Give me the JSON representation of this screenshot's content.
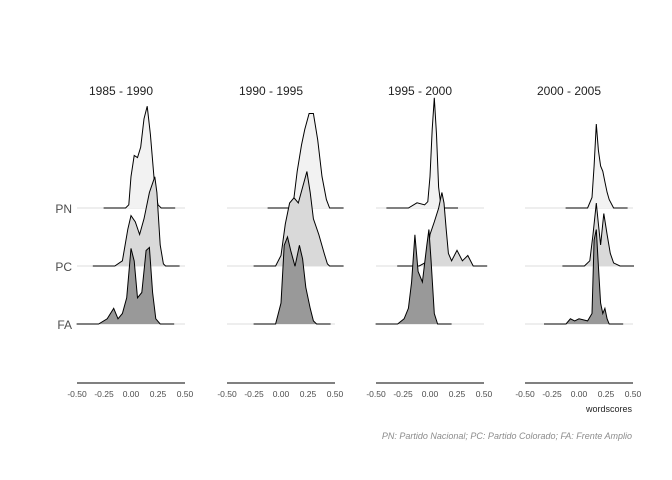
{
  "chart_data": {
    "type": "ridgeline",
    "x_label": "wordscores",
    "caption": "PN: Partido Nacional; PC: Partido Colorado; FA: Frente Amplio",
    "groups": [
      "PN",
      "PC",
      "FA"
    ],
    "x_ticks": [
      "-0.50",
      "-0.25",
      "0.00",
      "0.25",
      "0.50"
    ],
    "xlim": [
      -0.5,
      0.5
    ],
    "fills": {
      "PN": "#f2f2f2",
      "PC": "#d9d9d9",
      "FA": "#999999"
    },
    "panels": [
      {
        "title": "1985 - 1990",
        "curves": {
          "PN": [
            [
              -0.05,
              0
            ],
            [
              -0.02,
              0.03
            ],
            [
              0.0,
              0.3
            ],
            [
              0.03,
              0.5
            ],
            [
              0.06,
              0.48
            ],
            [
              0.09,
              0.58
            ],
            [
              0.12,
              0.85
            ],
            [
              0.15,
              0.97
            ],
            [
              0.18,
              0.7
            ],
            [
              0.22,
              0.2
            ],
            [
              0.25,
              0.03
            ],
            [
              0.28,
              0
            ]
          ],
          "PC": [
            [
              -0.15,
              0
            ],
            [
              -0.08,
              0.05
            ],
            [
              -0.03,
              0.35
            ],
            [
              0.0,
              0.48
            ],
            [
              0.04,
              0.42
            ],
            [
              0.08,
              0.3
            ],
            [
              0.12,
              0.45
            ],
            [
              0.17,
              0.7
            ],
            [
              0.22,
              0.85
            ],
            [
              0.24,
              0.7
            ],
            [
              0.27,
              0.2
            ],
            [
              0.3,
              0.02
            ],
            [
              0.32,
              0
            ]
          ],
          "FA": [
            [
              -0.3,
              0
            ],
            [
              -0.22,
              0.05
            ],
            [
              -0.16,
              0.15
            ],
            [
              -0.12,
              0.05
            ],
            [
              -0.08,
              0.1
            ],
            [
              -0.04,
              0.25
            ],
            [
              0.0,
              0.72
            ],
            [
              0.03,
              0.6
            ],
            [
              0.06,
              0.25
            ],
            [
              0.1,
              0.3
            ],
            [
              0.14,
              0.7
            ],
            [
              0.17,
              0.73
            ],
            [
              0.2,
              0.3
            ],
            [
              0.23,
              0.05
            ],
            [
              0.27,
              0
            ]
          ]
        }
      },
      {
        "title": "1990 - 1995",
        "curves": {
          "PN": [
            [
              0.08,
              0
            ],
            [
              0.12,
              0.1
            ],
            [
              0.15,
              0.35
            ],
            [
              0.19,
              0.6
            ],
            [
              0.22,
              0.75
            ],
            [
              0.26,
              0.9
            ],
            [
              0.3,
              0.9
            ],
            [
              0.34,
              0.65
            ],
            [
              0.38,
              0.3
            ],
            [
              0.42,
              0.08
            ],
            [
              0.45,
              0
            ]
          ],
          "PC": [
            [
              -0.05,
              0
            ],
            [
              0.0,
              0.1
            ],
            [
              0.04,
              0.4
            ],
            [
              0.08,
              0.6
            ],
            [
              0.12,
              0.65
            ],
            [
              0.16,
              0.6
            ],
            [
              0.2,
              0.75
            ],
            [
              0.24,
              0.9
            ],
            [
              0.27,
              0.7
            ],
            [
              0.3,
              0.45
            ],
            [
              0.35,
              0.3
            ],
            [
              0.4,
              0.12
            ],
            [
              0.43,
              0.02
            ],
            [
              0.45,
              0
            ]
          ],
          "FA": [
            [
              -0.05,
              0
            ],
            [
              0.0,
              0.2
            ],
            [
              0.03,
              0.75
            ],
            [
              0.06,
              0.83
            ],
            [
              0.09,
              0.7
            ],
            [
              0.13,
              0.55
            ],
            [
              0.17,
              0.75
            ],
            [
              0.2,
              0.62
            ],
            [
              0.23,
              0.35
            ],
            [
              0.27,
              0.15
            ],
            [
              0.3,
              0.03
            ],
            [
              0.33,
              0
            ]
          ]
        }
      },
      {
        "title": "1995 - 2000",
        "curves": {
          "PN": [
            [
              -0.2,
              0
            ],
            [
              -0.12,
              0.05
            ],
            [
              -0.05,
              0.03
            ],
            [
              -0.02,
              0.06
            ],
            [
              0.0,
              0.3
            ],
            [
              0.02,
              0.75
            ],
            [
              0.04,
              1.05
            ],
            [
              0.06,
              0.7
            ],
            [
              0.08,
              0.2
            ],
            [
              0.1,
              0.03
            ],
            [
              0.13,
              0
            ]
          ],
          "PC": [
            [
              -0.1,
              0
            ],
            [
              -0.03,
              0.04
            ],
            [
              0.0,
              0.3
            ],
            [
              0.04,
              0.42
            ],
            [
              0.08,
              0.55
            ],
            [
              0.11,
              0.7
            ],
            [
              0.13,
              0.6
            ],
            [
              0.15,
              0.35
            ],
            [
              0.17,
              0.12
            ],
            [
              0.2,
              0.05
            ],
            [
              0.25,
              0.15
            ],
            [
              0.3,
              0.05
            ],
            [
              0.35,
              0.1
            ],
            [
              0.4,
              0
            ]
          ],
          "FA": [
            [
              -0.3,
              0
            ],
            [
              -0.24,
              0.05
            ],
            [
              -0.2,
              0.15
            ],
            [
              -0.17,
              0.4
            ],
            [
              -0.14,
              0.85
            ],
            [
              -0.11,
              0.5
            ],
            [
              -0.07,
              0.4
            ],
            [
              -0.03,
              0.75
            ],
            [
              -0.01,
              0.9
            ],
            [
              0.01,
              0.6
            ],
            [
              0.04,
              0.1
            ],
            [
              0.07,
              0
            ]
          ]
        }
      },
      {
        "title": "2000 - 2005",
        "curves": {
          "PN": [
            [
              0.08,
              0
            ],
            [
              0.12,
              0.1
            ],
            [
              0.14,
              0.4
            ],
            [
              0.16,
              0.8
            ],
            [
              0.18,
              0.55
            ],
            [
              0.2,
              0.4
            ],
            [
              0.22,
              0.35
            ],
            [
              0.24,
              0.25
            ],
            [
              0.26,
              0.15
            ],
            [
              0.28,
              0.08
            ],
            [
              0.32,
              0
            ]
          ],
          "PC": [
            [
              0.05,
              0
            ],
            [
              0.1,
              0.05
            ],
            [
              0.13,
              0.3
            ],
            [
              0.16,
              0.6
            ],
            [
              0.18,
              0.4
            ],
            [
              0.2,
              0.2
            ],
            [
              0.23,
              0.5
            ],
            [
              0.26,
              0.3
            ],
            [
              0.29,
              0.12
            ],
            [
              0.32,
              0.03
            ],
            [
              0.38,
              0
            ]
          ],
          "FA": [
            [
              -0.12,
              0
            ],
            [
              -0.08,
              0.05
            ],
            [
              -0.04,
              0.03
            ],
            [
              0.0,
              0.05
            ],
            [
              0.08,
              0.03
            ],
            [
              0.12,
              0.1
            ],
            [
              0.14,
              0.8
            ],
            [
              0.16,
              0.9
            ],
            [
              0.18,
              0.55
            ],
            [
              0.2,
              0.2
            ],
            [
              0.22,
              0.1
            ],
            [
              0.24,
              0.15
            ],
            [
              0.26,
              0.05
            ],
            [
              0.28,
              0
            ]
          ]
        }
      }
    ]
  }
}
